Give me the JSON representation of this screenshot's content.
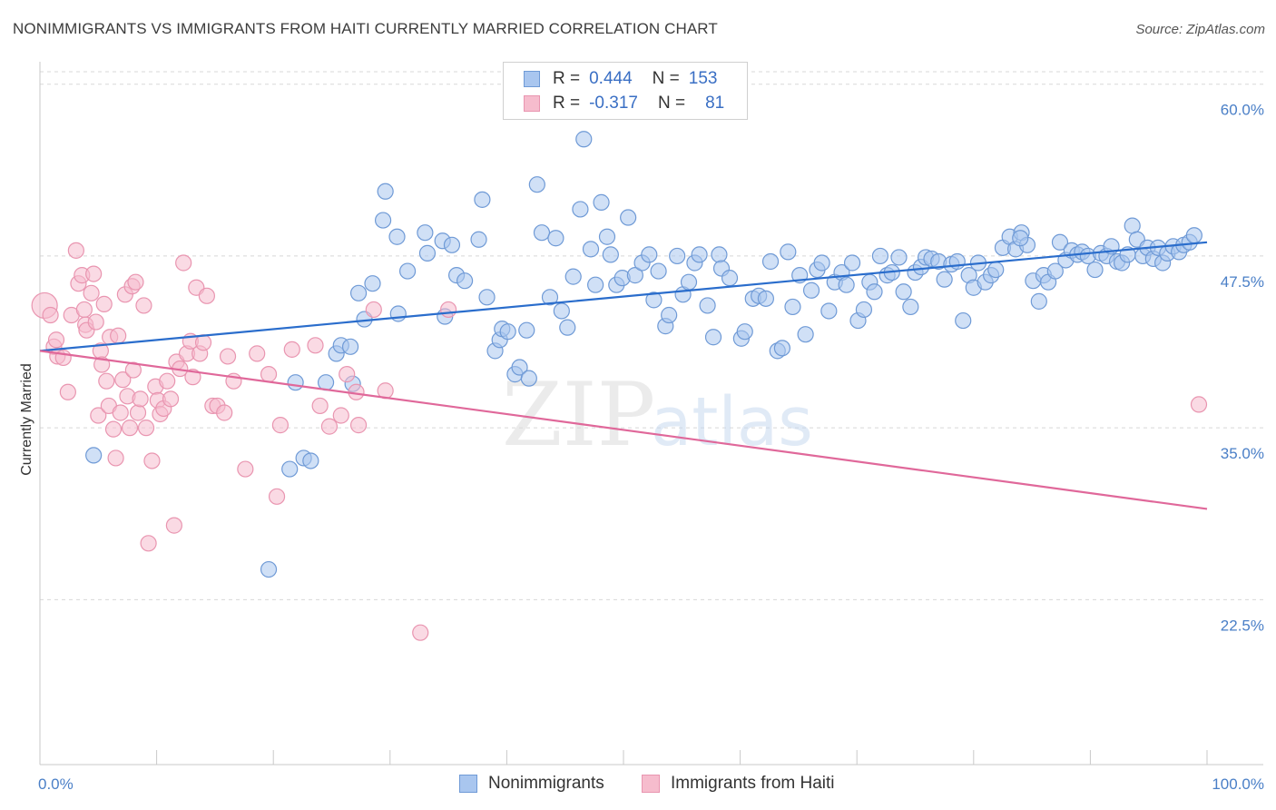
{
  "title": "NONIMMIGRANTS VS IMMIGRANTS FROM HAITI CURRENTLY MARRIED CORRELATION CHART",
  "source": "Source: ZipAtlas.com",
  "watermark": {
    "zip": "ZIP",
    "atlas": "atlas"
  },
  "colors": {
    "blue_fill": "#a9c6ef",
    "blue_stroke": "#6f9ad6",
    "blue_line": "#2a6dcc",
    "pink_fill": "#f6bccd",
    "pink_stroke": "#e995b0",
    "pink_line": "#e0689a",
    "tick_text": "#4a7fc7",
    "grid": "#d8d8d8"
  },
  "legend": {
    "rows": [
      {
        "r_label": "R =",
        "r_value": "0.444",
        "n_label": "N =",
        "n_value": "153"
      },
      {
        "r_label": "R =",
        "r_value": "-0.317",
        "n_label": "N =",
        "n_value": "81"
      }
    ]
  },
  "bottom_legend": {
    "items": [
      {
        "label": "Nonimmigrants"
      },
      {
        "label": "Immigrants from Haiti"
      }
    ]
  },
  "chart_data": {
    "type": "scatter",
    "ylabel": "Currently Married",
    "xlim": [
      0,
      100
    ],
    "ylim": [
      10.5,
      61.5
    ],
    "y_ticks": [
      {
        "value": 22.5,
        "label": "22.5%"
      },
      {
        "value": 35.0,
        "label": "35.0%"
      },
      {
        "value": 47.5,
        "label": "47.5%"
      },
      {
        "value": 60.0,
        "label": "60.0%"
      }
    ],
    "x_tick_labels": [
      {
        "value": 0,
        "label": "0.0%"
      },
      {
        "value": 100,
        "label": "100.0%"
      }
    ],
    "x_minor_ticks": [
      0,
      10,
      20,
      30,
      40,
      50,
      60,
      70,
      80,
      90,
      100
    ],
    "series": [
      {
        "name": "Nonimmigrants",
        "trend": {
          "x": [
            0,
            100
          ],
          "y": [
            40.6,
            48.5
          ]
        },
        "points": [
          [
            4.6,
            33.0
          ],
          [
            19.6,
            24.7
          ],
          [
            21.4,
            32.0
          ],
          [
            22.6,
            32.8
          ],
          [
            23.2,
            32.6
          ],
          [
            21.9,
            38.3
          ],
          [
            24.5,
            38.3
          ],
          [
            25.4,
            40.4
          ],
          [
            25.8,
            41.0
          ],
          [
            26.6,
            40.9
          ],
          [
            26.8,
            38.2
          ],
          [
            27.3,
            44.8
          ],
          [
            27.8,
            42.9
          ],
          [
            28.5,
            45.5
          ],
          [
            29.4,
            50.1
          ],
          [
            29.6,
            52.2
          ],
          [
            30.6,
            48.9
          ],
          [
            30.7,
            43.3
          ],
          [
            31.5,
            46.4
          ],
          [
            33.2,
            47.7
          ],
          [
            33.0,
            49.2
          ],
          [
            34.7,
            43.1
          ],
          [
            34.5,
            48.6
          ],
          [
            35.3,
            48.3
          ],
          [
            35.7,
            46.1
          ],
          [
            36.4,
            45.7
          ],
          [
            37.6,
            48.7
          ],
          [
            37.9,
            51.6
          ],
          [
            38.3,
            44.5
          ],
          [
            39.0,
            40.6
          ],
          [
            39.4,
            41.4
          ],
          [
            39.6,
            42.2
          ],
          [
            40.1,
            42.0
          ],
          [
            40.7,
            38.9
          ],
          [
            41.1,
            39.4
          ],
          [
            41.7,
            42.1
          ],
          [
            41.9,
            38.6
          ],
          [
            42.6,
            52.7
          ],
          [
            43.0,
            49.2
          ],
          [
            43.7,
            44.5
          ],
          [
            44.2,
            48.8
          ],
          [
            44.7,
            43.5
          ],
          [
            45.2,
            42.3
          ],
          [
            45.7,
            46.0
          ],
          [
            46.3,
            50.9
          ],
          [
            46.6,
            56.0
          ],
          [
            47.2,
            48.0
          ],
          [
            47.6,
            45.4
          ],
          [
            48.1,
            51.4
          ],
          [
            48.6,
            48.9
          ],
          [
            48.9,
            47.6
          ],
          [
            49.4,
            45.4
          ],
          [
            49.9,
            45.9
          ],
          [
            50.4,
            50.3
          ],
          [
            51.0,
            46.1
          ],
          [
            51.6,
            47.0
          ],
          [
            52.2,
            47.6
          ],
          [
            52.6,
            44.3
          ],
          [
            53.0,
            46.4
          ],
          [
            53.6,
            42.4
          ],
          [
            53.9,
            43.2
          ],
          [
            54.6,
            47.5
          ],
          [
            55.1,
            44.7
          ],
          [
            55.6,
            45.6
          ],
          [
            56.1,
            47.0
          ],
          [
            56.5,
            47.6
          ],
          [
            57.2,
            43.9
          ],
          [
            57.7,
            41.6
          ],
          [
            58.2,
            47.6
          ],
          [
            58.4,
            46.6
          ],
          [
            59.1,
            45.9
          ],
          [
            60.1,
            41.5
          ],
          [
            60.4,
            42.0
          ],
          [
            61.1,
            44.4
          ],
          [
            61.6,
            44.6
          ],
          [
            62.2,
            44.4
          ],
          [
            62.6,
            47.1
          ],
          [
            63.2,
            40.6
          ],
          [
            63.6,
            40.8
          ],
          [
            64.1,
            47.8
          ],
          [
            64.5,
            43.8
          ],
          [
            65.1,
            46.1
          ],
          [
            65.6,
            41.8
          ],
          [
            66.1,
            45.0
          ],
          [
            66.6,
            46.5
          ],
          [
            67.0,
            47.0
          ],
          [
            67.6,
            43.5
          ],
          [
            68.1,
            45.6
          ],
          [
            68.7,
            46.3
          ],
          [
            69.1,
            45.4
          ],
          [
            69.6,
            47.0
          ],
          [
            70.1,
            42.8
          ],
          [
            70.6,
            43.6
          ],
          [
            71.1,
            45.6
          ],
          [
            71.5,
            44.9
          ],
          [
            72.0,
            47.5
          ],
          [
            72.6,
            46.1
          ],
          [
            73.0,
            46.3
          ],
          [
            73.6,
            47.4
          ],
          [
            74.0,
            44.9
          ],
          [
            74.6,
            43.8
          ],
          [
            75.0,
            46.3
          ],
          [
            75.5,
            46.7
          ],
          [
            75.9,
            47.4
          ],
          [
            76.4,
            47.3
          ],
          [
            77.0,
            47.1
          ],
          [
            77.5,
            45.8
          ],
          [
            78.1,
            46.9
          ],
          [
            78.6,
            47.1
          ],
          [
            79.1,
            42.8
          ],
          [
            79.6,
            46.1
          ],
          [
            80.0,
            45.2
          ],
          [
            80.4,
            47.0
          ],
          [
            81.0,
            45.6
          ],
          [
            81.5,
            46.1
          ],
          [
            81.9,
            46.5
          ],
          [
            82.5,
            48.1
          ],
          [
            83.1,
            48.9
          ],
          [
            83.6,
            48.0
          ],
          [
            84.1,
            49.2
          ],
          [
            84.6,
            48.3
          ],
          [
            85.1,
            45.7
          ],
          [
            85.6,
            44.2
          ],
          [
            86.0,
            46.1
          ],
          [
            86.4,
            45.6
          ],
          [
            87.0,
            46.4
          ],
          [
            87.4,
            48.5
          ],
          [
            87.9,
            47.2
          ],
          [
            88.4,
            47.9
          ],
          [
            88.9,
            47.6
          ],
          [
            89.3,
            47.8
          ],
          [
            89.8,
            47.5
          ],
          [
            90.4,
            46.5
          ],
          [
            90.9,
            47.7
          ],
          [
            91.4,
            47.5
          ],
          [
            91.8,
            48.2
          ],
          [
            92.3,
            47.1
          ],
          [
            92.7,
            47.0
          ],
          [
            93.2,
            47.6
          ],
          [
            93.6,
            49.7
          ],
          [
            94.0,
            48.7
          ],
          [
            94.5,
            47.5
          ],
          [
            94.9,
            48.1
          ],
          [
            95.4,
            47.3
          ],
          [
            95.8,
            48.1
          ],
          [
            96.2,
            47.0
          ],
          [
            96.6,
            47.7
          ],
          [
            97.1,
            48.2
          ],
          [
            97.6,
            47.8
          ],
          [
            98.0,
            48.3
          ],
          [
            98.5,
            48.5
          ],
          [
            98.9,
            49.0
          ],
          [
            84.0,
            48.8
          ]
        ]
      },
      {
        "name": "Immigrants from Haiti",
        "trend": {
          "x": [
            0,
            100
          ],
          "y": [
            40.6,
            29.1
          ]
        },
        "points": [
          [
            0.4,
            43.9
          ],
          [
            0.9,
            43.2
          ],
          [
            1.2,
            40.9
          ],
          [
            1.4,
            41.4
          ],
          [
            1.5,
            40.2
          ],
          [
            2.0,
            40.1
          ],
          [
            2.4,
            37.6
          ],
          [
            2.7,
            43.2
          ],
          [
            3.1,
            47.9
          ],
          [
            3.3,
            45.5
          ],
          [
            3.6,
            46.1
          ],
          [
            3.8,
            43.6
          ],
          [
            3.9,
            42.5
          ],
          [
            4.0,
            42.1
          ],
          [
            4.4,
            44.8
          ],
          [
            4.6,
            46.2
          ],
          [
            4.8,
            42.7
          ],
          [
            5.0,
            35.9
          ],
          [
            5.2,
            40.6
          ],
          [
            5.3,
            39.6
          ],
          [
            5.5,
            44.0
          ],
          [
            5.7,
            38.4
          ],
          [
            5.9,
            36.6
          ],
          [
            6.0,
            41.6
          ],
          [
            6.3,
            34.9
          ],
          [
            6.5,
            32.8
          ],
          [
            6.7,
            41.7
          ],
          [
            6.9,
            36.1
          ],
          [
            7.1,
            38.5
          ],
          [
            7.3,
            44.7
          ],
          [
            7.5,
            37.3
          ],
          [
            7.7,
            35.0
          ],
          [
            7.9,
            45.3
          ],
          [
            8.0,
            39.2
          ],
          [
            8.2,
            45.6
          ],
          [
            8.4,
            36.1
          ],
          [
            8.6,
            37.1
          ],
          [
            8.9,
            43.9
          ],
          [
            9.1,
            35.0
          ],
          [
            9.3,
            26.6
          ],
          [
            9.6,
            32.6
          ],
          [
            9.9,
            38.0
          ],
          [
            10.1,
            37.0
          ],
          [
            10.3,
            36.0
          ],
          [
            10.6,
            36.4
          ],
          [
            10.9,
            38.4
          ],
          [
            11.2,
            37.1
          ],
          [
            11.5,
            27.9
          ],
          [
            11.7,
            39.8
          ],
          [
            12.0,
            39.3
          ],
          [
            12.3,
            47.0
          ],
          [
            12.6,
            40.4
          ],
          [
            12.9,
            41.3
          ],
          [
            13.1,
            38.7
          ],
          [
            13.4,
            45.2
          ],
          [
            13.7,
            40.4
          ],
          [
            14.0,
            41.2
          ],
          [
            14.3,
            44.6
          ],
          [
            14.8,
            36.6
          ],
          [
            15.2,
            36.6
          ],
          [
            15.8,
            36.1
          ],
          [
            16.1,
            40.2
          ],
          [
            16.6,
            38.4
          ],
          [
            17.6,
            32.0
          ],
          [
            18.6,
            40.4
          ],
          [
            19.6,
            38.9
          ],
          [
            20.3,
            30.0
          ],
          [
            20.6,
            35.2
          ],
          [
            21.6,
            40.7
          ],
          [
            23.6,
            41.0
          ],
          [
            24.0,
            36.6
          ],
          [
            24.8,
            35.1
          ],
          [
            25.8,
            35.9
          ],
          [
            26.3,
            38.9
          ],
          [
            27.1,
            37.6
          ],
          [
            27.3,
            35.2
          ],
          [
            28.6,
            43.6
          ],
          [
            29.6,
            37.7
          ],
          [
            32.6,
            20.1
          ],
          [
            35.0,
            43.6
          ],
          [
            99.3,
            36.7
          ]
        ]
      }
    ]
  }
}
